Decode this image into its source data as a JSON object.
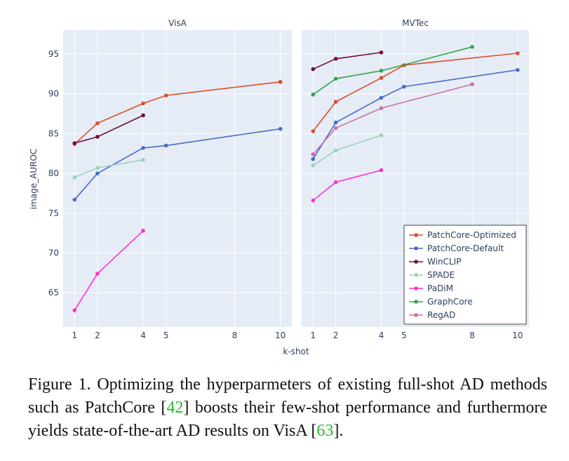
{
  "chart_data": {
    "type": "line",
    "xlabel": "k-shot",
    "ylabel": "image_AUROC",
    "x_ticks": [
      1,
      2,
      4,
      5,
      8,
      10
    ],
    "y_ticks": [
      65,
      70,
      75,
      80,
      85,
      90,
      95
    ],
    "legend_position": "bottom-right (inside MVTec panel)",
    "grid": true,
    "legend": [
      {
        "name": "PatchCore-Optimized",
        "color": "#d94e2a"
      },
      {
        "name": "PatchCore-Default",
        "color": "#4a6dc5"
      },
      {
        "name": "WinCLIP",
        "color": "#6e0f3e"
      },
      {
        "name": "SPADE",
        "color": "#9ad3bc"
      },
      {
        "name": "PaDiM",
        "color": "#ff33cc"
      },
      {
        "name": "GraphCore",
        "color": "#36a348"
      },
      {
        "name": "RegAD",
        "color": "#cc6fa8"
      }
    ],
    "panels": [
      {
        "title": "VisA",
        "xlim": [
          0.5,
          10.5
        ],
        "ylim": [
          60.7,
          98
        ],
        "series": [
          {
            "name": "PatchCore-Optimized",
            "color": "#d94e2a",
            "x": [
              1,
              2,
              4,
              5,
              10
            ],
            "y": [
              83.7,
              86.3,
              88.8,
              89.8,
              91.5
            ]
          },
          {
            "name": "PatchCore-Default",
            "color": "#4a6dc5",
            "x": [
              1,
              2,
              4,
              5,
              10
            ],
            "y": [
              76.7,
              80.0,
              83.2,
              83.5,
              85.6
            ]
          },
          {
            "name": "WinCLIP",
            "color": "#6e0f3e",
            "x": [
              1,
              2,
              4
            ],
            "y": [
              83.8,
              84.6,
              87.3
            ]
          },
          {
            "name": "SPADE",
            "color": "#9ad3bc",
            "x": [
              1,
              2,
              4
            ],
            "y": [
              79.5,
              80.7,
              81.7
            ]
          },
          {
            "name": "PaDiM",
            "color": "#ff33cc",
            "x": [
              1,
              2,
              4
            ],
            "y": [
              62.8,
              67.4,
              72.8
            ]
          }
        ]
      },
      {
        "title": "MVTec",
        "xlim": [
          0.5,
          10.5
        ],
        "ylim": [
          60.7,
          98
        ],
        "series": [
          {
            "name": "PatchCore-Optimized",
            "color": "#d94e2a",
            "x": [
              1,
              2,
              4,
              5,
              10
            ],
            "y": [
              85.3,
              89.0,
              92.0,
              93.6,
              95.1
            ]
          },
          {
            "name": "PatchCore-Default",
            "color": "#4a6dc5",
            "x": [
              1,
              2,
              4,
              5,
              10
            ],
            "y": [
              81.8,
              86.4,
              89.5,
              90.9,
              93.0
            ]
          },
          {
            "name": "WinCLIP",
            "color": "#6e0f3e",
            "x": [
              1,
              2,
              4
            ],
            "y": [
              93.1,
              94.4,
              95.2
            ]
          },
          {
            "name": "SPADE",
            "color": "#9ad3bc",
            "x": [
              1,
              2,
              4
            ],
            "y": [
              81.0,
              82.9,
              84.8
            ]
          },
          {
            "name": "PaDiM",
            "color": "#ff33cc",
            "x": [
              1,
              2,
              4
            ],
            "y": [
              76.6,
              78.9,
              80.4
            ]
          },
          {
            "name": "GraphCore",
            "color": "#36a348",
            "x": [
              1,
              2,
              4,
              8
            ],
            "y": [
              89.9,
              91.9,
              92.9,
              95.9
            ]
          },
          {
            "name": "RegAD",
            "color": "#cc6fa8",
            "x": [
              1,
              2,
              4,
              8
            ],
            "y": [
              82.4,
              85.7,
              88.2,
              91.2
            ]
          }
        ]
      }
    ]
  },
  "caption": {
    "prefix": "Figure 1. Optimizing the hyperparmeters of existing full-shot AD methods such as PatchCore [",
    "cite1": "42",
    "middle": "] boosts their few-shot performance and furthermore yields state-of-the-art AD results on VisA [",
    "cite2": "63",
    "suffix": "]."
  }
}
